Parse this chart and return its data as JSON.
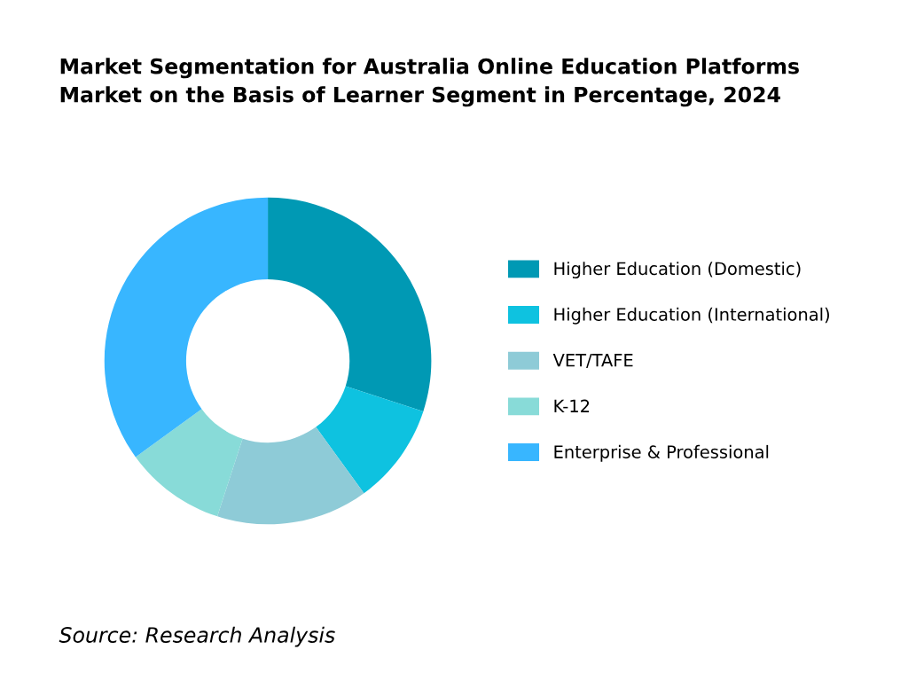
{
  "chart_data": {
    "type": "donut",
    "title": "Market Segmentation for Australia Online Education Platforms\nMarket on the Basis of Learner Segment in Percentage, 2024",
    "categories": [
      "Higher Education (Domestic)",
      "Higher Education (International)",
      "VET/TAFE",
      "K-12",
      "Enterprise & Professional"
    ],
    "values": [
      30,
      10,
      15,
      10,
      35
    ],
    "colors": [
      "#0099b4",
      "#0ec2e0",
      "#8ecbd7",
      "#88dbd8",
      "#38b6ff"
    ],
    "legend": "right",
    "annotations": [
      "Source: Research Analysis"
    ]
  }
}
